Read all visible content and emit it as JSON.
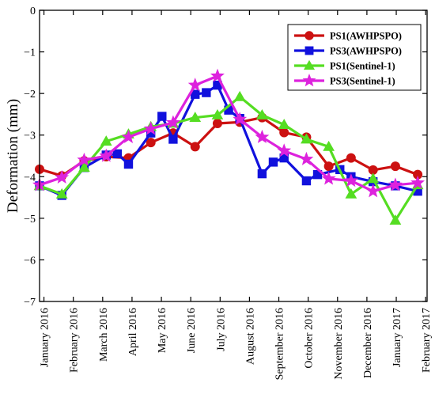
{
  "chart_data": {
    "type": "line",
    "title": "",
    "xlabel": "",
    "ylabel": "Deformation (mm)",
    "ylim": [
      -7,
      0
    ],
    "yticks": [
      0,
      -1,
      -2,
      -3,
      -4,
      -5,
      -6,
      -7
    ],
    "ytick_labels": [
      "0",
      "−1",
      "−2",
      "−3",
      "−4",
      "−5",
      "−6",
      "−7"
    ],
    "xlim": [
      0,
      13.2
    ],
    "xtick_positions": [
      0.15,
      1.15,
      2.15,
      3.15,
      4.15,
      5.15,
      6.15,
      7.15,
      8.15,
      9.15,
      10.15,
      11.15,
      12.15,
      13.15
    ],
    "xtick_labels": [
      "January 2016",
      "February 2016",
      "March 2016",
      "April 2016",
      "May 2016",
      "June 2016",
      "July 2016",
      "August 2016",
      "September 2016",
      "October 2016",
      "November 2016",
      "December 2016",
      "January 2017",
      "February 2017"
    ],
    "grid": false,
    "legend_position": "top-right",
    "series": [
      {
        "name": "PS1(AWHPSPO)",
        "color": "#cc1111",
        "marker": "circle",
        "x": [
          0,
          0.76,
          1.52,
          2.27,
          3.03,
          3.79,
          4.55,
          5.3,
          6.06,
          6.82,
          7.58,
          8.33,
          9.09,
          9.85,
          10.61,
          11.36,
          12.12,
          12.88
        ],
        "y": [
          -3.82,
          -3.98,
          -3.62,
          -3.52,
          -3.55,
          -3.18,
          -2.95,
          -3.28,
          -2.72,
          -2.69,
          -2.58,
          -2.94,
          -3.05,
          -3.75,
          -3.55,
          -3.84,
          -3.75,
          -3.95
        ]
      },
      {
        "name": "PS3(AWHPSPO)",
        "color": "#1111dd",
        "marker": "square",
        "x": [
          0,
          0.76,
          1.52,
          2.27,
          2.65,
          3.03,
          3.79,
          4.17,
          4.55,
          5.3,
          5.68,
          6.06,
          6.44,
          6.82,
          7.58,
          7.96,
          8.33,
          9.09,
          9.47,
          10.23,
          10.61,
          11.36,
          12.12,
          12.88
        ],
        "y": [
          -4.22,
          -4.45,
          -3.78,
          -3.48,
          -3.45,
          -3.7,
          -2.95,
          -2.55,
          -3.1,
          -2.02,
          -1.98,
          -1.8,
          -2.4,
          -2.6,
          -3.93,
          -3.65,
          -3.55,
          -4.1,
          -3.95,
          -3.83,
          -4.0,
          -4.12,
          -4.22,
          -4.35
        ]
      },
      {
        "name": "PS1(Sentinel-1)",
        "color": "#55dd22",
        "marker": "triangle",
        "x": [
          0,
          0.76,
          1.52,
          2.27,
          3.03,
          3.79,
          4.55,
          5.3,
          6.06,
          6.82,
          7.58,
          8.33,
          9.09,
          9.85,
          10.61,
          11.36,
          12.12,
          12.88
        ],
        "y": [
          -4.22,
          -4.42,
          -3.78,
          -3.15,
          -2.98,
          -2.8,
          -2.72,
          -2.58,
          -2.52,
          -2.08,
          -2.52,
          -2.75,
          -3.1,
          -3.28,
          -4.42,
          -4.05,
          -5.05,
          -4.2
        ]
      },
      {
        "name": "PS3(Sentinel-1)",
        "color": "#dd22dd",
        "marker": "star",
        "x": [
          0,
          0.76,
          1.52,
          2.27,
          3.03,
          3.79,
          4.55,
          5.3,
          6.06,
          6.82,
          7.58,
          8.33,
          9.09,
          9.85,
          10.61,
          11.36,
          12.12,
          12.88
        ],
        "y": [
          -4.2,
          -4.02,
          -3.6,
          -3.5,
          -3.05,
          -2.85,
          -2.7,
          -1.8,
          -1.58,
          -2.62,
          -3.05,
          -3.38,
          -3.58,
          -4.05,
          -4.1,
          -4.35,
          -4.2,
          -4.15
        ]
      }
    ]
  }
}
